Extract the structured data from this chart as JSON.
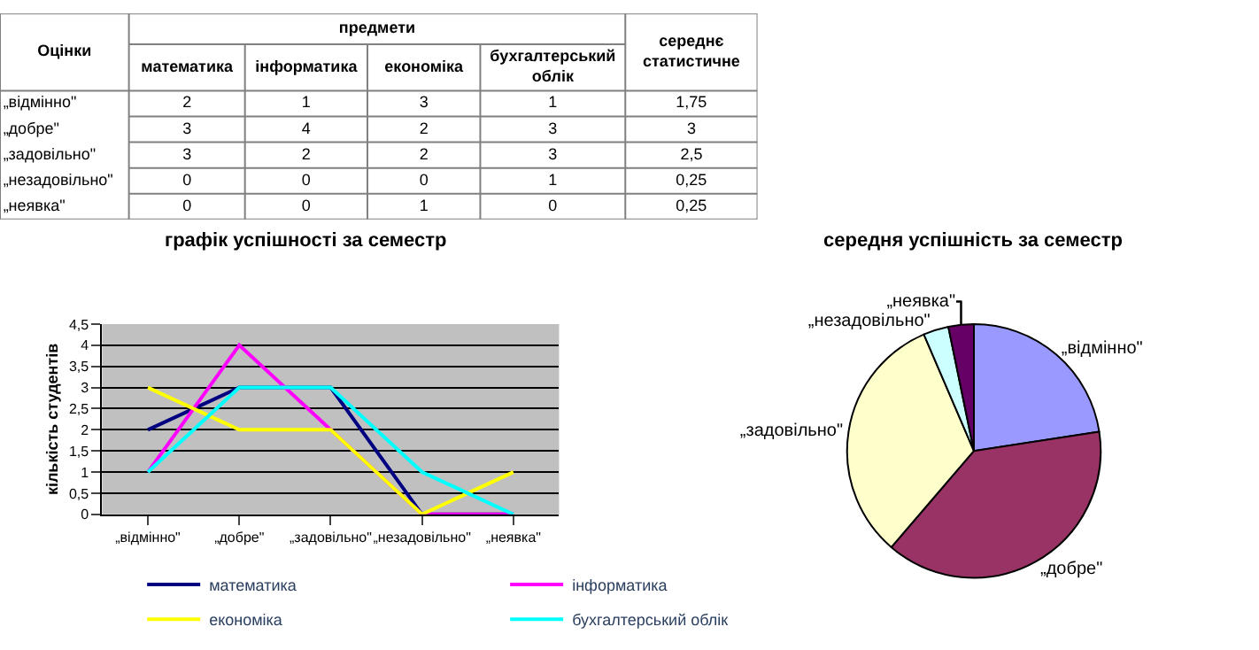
{
  "chart_data": [
    {
      "type": "other",
      "xlabel": "предмети",
      "ylabel": "Оцінки",
      "categories": [
        "математика",
        "інформатика",
        "економіка",
        "бухгалтерський облік",
        "середнє статистичне"
      ],
      "y_categories": [
        "„відмінно\"",
        "„добре\"",
        "„задовільно\"",
        "„незадовільно\"",
        "„неявка\""
      ],
      "cell_labels": [
        [
          "2",
          "1",
          "3",
          "1",
          "1,75"
        ],
        [
          "3",
          "4",
          "2",
          "3",
          "3"
        ],
        [
          "3",
          "2",
          "2",
          "3",
          "2,5"
        ],
        [
          "0",
          "0",
          "0",
          "1",
          "0,25"
        ],
        [
          "0",
          "0",
          "1",
          "0",
          "0,25"
        ]
      ]
    },
    {
      "type": "line",
      "title": "графік успішності за семестр",
      "ylabel": "кількість студентів",
      "categories": [
        "„відмінно\"",
        "„добре\"",
        "„задовільно\"",
        "„незадовільно\"",
        "„неявка\""
      ],
      "series": [
        {
          "name": "математика",
          "color": "#000080",
          "values": [
            2,
            3,
            3,
            0,
            0
          ]
        },
        {
          "name": "інформатика",
          "color": "#ff00ff",
          "values": [
            1,
            4,
            2,
            0,
            0
          ]
        },
        {
          "name": "економіка",
          "color": "#ffff00",
          "values": [
            3,
            2,
            2,
            0,
            1
          ]
        },
        {
          "name": "бухгалтерський облік",
          "color": "#00ffff",
          "values": [
            1,
            3,
            3,
            1,
            0
          ]
        }
      ],
      "ylim": [
        0,
        4.5
      ],
      "yticks": [
        0,
        {
          "value": 0.5,
          "label": "0,5"
        },
        1,
        {
          "value": 1.5,
          "label": "1,5"
        },
        2,
        {
          "value": 2.5,
          "label": "2,5"
        },
        3,
        {
          "value": 3.5,
          "label": "3,5"
        },
        4,
        {
          "value": 4.5,
          "label": "4,5"
        }
      ],
      "grid": "y",
      "legend": "bottom"
    },
    {
      "type": "pie",
      "title": "середня успішність за семестр",
      "categories": [
        "„відмінно\"",
        "„добре\"",
        "„задовільно\"",
        "„незадовільно\"",
        "„неявка\""
      ],
      "values": [
        22.58,
        38.71,
        32.26,
        3.23,
        3.23
      ],
      "colors": [
        "#9999ff",
        "#993366",
        "#ffffcc",
        "#ccffff",
        "#660066"
      ]
    }
  ]
}
